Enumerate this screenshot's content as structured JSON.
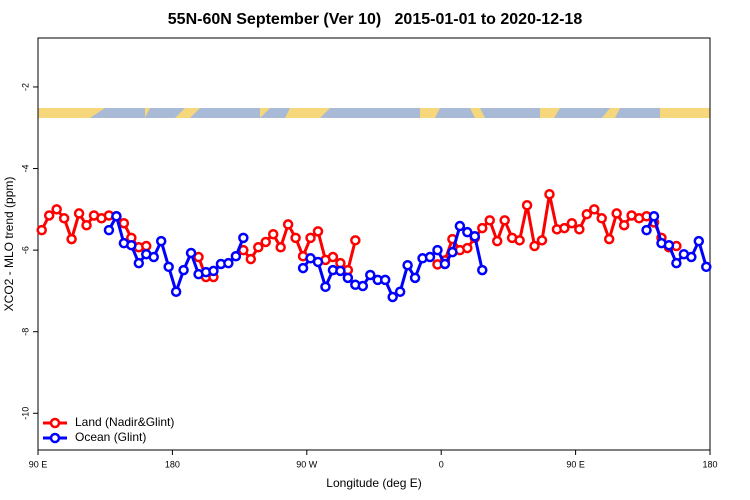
{
  "chart_data": {
    "type": "line",
    "title": "55N-60N September (Ver 10)   2015-01-01 to 2020-12-18",
    "x_label": "Longitude (deg E)",
    "y_label": "XCO2 - MLO trend (ppm)",
    "x": [
      92.5,
      97.5,
      102.5,
      107.5,
      112.5,
      117.5,
      122.5,
      127.5,
      132.5,
      137.5,
      142.5,
      147.5,
      152.5,
      157.5,
      162.5,
      167.5,
      172.5,
      177.5,
      182.5,
      187.5,
      192.5,
      197.5,
      202.5,
      207.5,
      212.5,
      217.5,
      222.5,
      227.5,
      232.5,
      237.5,
      242.5,
      247.5,
      252.5,
      257.5,
      262.5,
      267.5,
      272.5,
      277.5,
      282.5,
      287.5,
      292.5,
      297.5,
      302.5,
      307.5,
      312.5,
      317.5,
      322.5,
      327.5,
      332.5,
      337.5,
      342.5,
      347.5,
      352.5,
      357.5,
      362.5,
      367.5,
      372.5,
      377.5,
      382.5,
      387.5,
      392.5,
      397.5,
      402.5,
      407.5,
      412.5,
      417.5,
      422.5,
      427.5,
      432.5,
      437.5,
      442.5,
      447.5,
      452.5,
      457.5,
      462.5,
      467.5,
      472.5,
      477.5,
      482.5,
      487.5,
      492.5,
      497.5,
      502.5,
      507.5,
      512.5,
      517.5,
      522.5,
      527.5,
      532.5,
      537.5
    ],
    "series": [
      {
        "name": "Land (Nadir&Glint)",
        "color": "#ff0000",
        "values": [
          -5.51,
          -5.15,
          -5.0,
          -5.22,
          -5.73,
          -5.1,
          -5.39,
          -5.15,
          -5.22,
          -5.15,
          -5.17,
          -5.34,
          -5.7,
          -5.93,
          -5.9,
          null,
          null,
          null,
          null,
          null,
          null,
          -6.17,
          -6.66,
          -6.66,
          null,
          null,
          null,
          -6.0,
          -6.22,
          -5.93,
          -5.8,
          -5.61,
          -5.93,
          -5.37,
          -5.7,
          -6.15,
          -5.7,
          -5.54,
          -6.24,
          -6.17,
          -6.32,
          -6.49,
          -5.76,
          null,
          null,
          null,
          null,
          null,
          null,
          null,
          null,
          null,
          null,
          -6.35,
          -6.25,
          -5.73,
          -6.0,
          -5.95,
          -5.7,
          -5.46,
          -5.27,
          -5.78,
          -5.27,
          -5.7,
          -5.76,
          -4.9,
          -5.9,
          -5.76,
          -4.63,
          -5.49,
          -5.46,
          -5.34,
          -5.49,
          -5.12,
          -5.0,
          -5.22,
          -5.73,
          -5.1,
          -5.39,
          -5.15,
          -5.22,
          -5.17,
          -5.32,
          -5.7,
          -5.93,
          -5.9,
          null,
          null,
          null,
          null
        ]
      },
      {
        "name": "Ocean (Glint)",
        "color": "#0000ff",
        "values": [
          null,
          null,
          null,
          null,
          null,
          null,
          null,
          null,
          null,
          -5.51,
          -5.17,
          -5.83,
          -5.88,
          -6.32,
          -6.1,
          -6.17,
          -5.78,
          -6.41,
          -7.02,
          -6.49,
          -6.07,
          -6.59,
          -6.54,
          -6.51,
          -6.34,
          -6.32,
          -6.15,
          -5.7,
          null,
          null,
          null,
          null,
          null,
          null,
          null,
          -6.44,
          -6.2,
          -6.29,
          -6.9,
          -6.49,
          -6.51,
          -6.68,
          -6.85,
          -6.88,
          -6.61,
          -6.73,
          -6.73,
          -7.15,
          -7.02,
          -6.37,
          -6.68,
          -6.2,
          -6.17,
          -6.0,
          -6.34,
          -6.05,
          -5.41,
          -5.56,
          -5.66,
          -6.49,
          null,
          null,
          null,
          null,
          null,
          null,
          null,
          null,
          null,
          null,
          null,
          null,
          null,
          null,
          null,
          null,
          null,
          null,
          null,
          null,
          null,
          -5.51,
          -5.17,
          -5.83,
          -5.88,
          -6.32,
          -6.1,
          -6.17,
          -5.78,
          -6.41
        ]
      }
    ],
    "xlim": [
      90,
      540
    ],
    "xticks": [
      {
        "value": 90,
        "label": "90 E"
      },
      180,
      {
        "value": 270,
        "label": "90 W"
      },
      {
        "value": 360,
        "label": "0"
      },
      {
        "value": 450,
        "label": "90 E"
      },
      {
        "value": 540,
        "label": "180"
      }
    ],
    "ylim": [
      -10.9,
      -0.8
    ],
    "yticks": [
      -2,
      -4,
      -6,
      -8,
      -10
    ],
    "legend": "bottom-left"
  }
}
